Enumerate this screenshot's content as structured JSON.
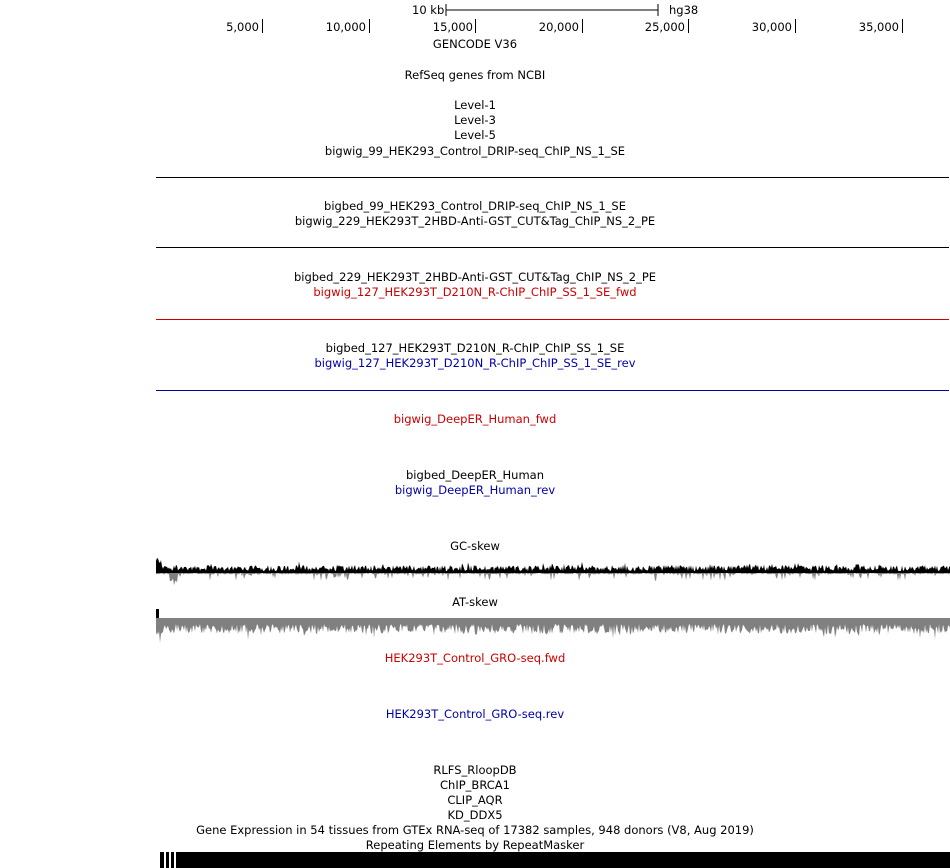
{
  "ruler": {
    "scale_label": "10 kb",
    "assembly": "hg38",
    "ticks": [
      "5,000",
      "10,000",
      "15,000",
      "20,000",
      "25,000",
      "30,000",
      "35,000"
    ]
  },
  "tracks": {
    "gencode": "GENCODE V36",
    "refseq": "RefSeq genes from NCBI",
    "level1": "Level-1",
    "level3": "Level-3",
    "level5": "Level-5",
    "bigwig_99": "bigwig_99_HEK293_Control_DRIP-seq_ChIP_NS_1_SE",
    "bigbed_99": "bigbed_99_HEK293_Control_DRIP-seq_ChIP_NS_1_SE",
    "bigwig_229": "bigwig_229_HEK293T_2HBD-Anti-GST_CUT&Tag_ChIP_NS_2_PE",
    "bigbed_229": "bigbed_229_HEK293T_2HBD-Anti-GST_CUT&Tag_ChIP_NS_2_PE",
    "bigwig_127_fwd": "bigwig_127_HEK293T_D210N_R-ChIP_ChIP_SS_1_SE_fwd",
    "bigbed_127": "bigbed_127_HEK293T_D210N_R-ChIP_ChIP_SS_1_SE",
    "bigwig_127_rev": "bigwig_127_HEK293T_D210N_R-ChIP_ChIP_SS_1_SE_rev",
    "deeper_fwd": "bigwig_DeepER_Human_fwd",
    "deeper_bed": "bigbed_DeepER_Human",
    "deeper_rev": "bigwig_DeepER_Human_rev",
    "gc_skew": "GC-skew",
    "at_skew": "AT-skew",
    "gro_fwd": "HEK293T_Control_GRO-seq.fwd",
    "gro_rev": "HEK293T_Control_GRO-seq.rev",
    "rlfs": "RLFS_RloopDB",
    "brca1": "ChIP_BRCA1",
    "aqr": "CLIP_AQR",
    "ddx5": "KD_DDX5",
    "gtex": "Gene Expression in 54 tissues from GTEx RNA-seq of 17382 samples, 948 donors (V8, Aug 2019)",
    "repeatmasker": "Repeating Elements by RepeatMasker"
  },
  "colors": {
    "fwd": "#cc0000",
    "rev": "#0000aa",
    "default": "#000000",
    "at_skew_fill": "#808080"
  }
}
